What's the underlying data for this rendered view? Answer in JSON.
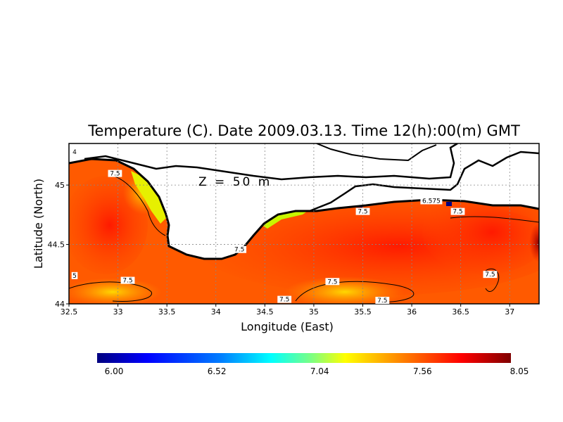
{
  "chart_data": {
    "type": "heatmap",
    "title": "Temperature (C). Date 2009.03.13. Time 12(h):00(m) GMT",
    "annotation": "Z = 50 m",
    "xlabel": "Longitude (East)",
    "ylabel": "Latitude (North)",
    "xlim": [
      32.5,
      37.3
    ],
    "ylim": [
      44.0,
      45.35
    ],
    "x_ticks": [
      "32.5",
      "33",
      "33.5",
      "34",
      "34.5",
      "35",
      "35.5",
      "36",
      "36.5",
      "37"
    ],
    "y_ticks": [
      "44",
      "44.5",
      "45"
    ],
    "grid": true,
    "colorbar": {
      "min": 6.0,
      "max": 8.05,
      "labels": [
        "6.00",
        "6.52",
        "7.04",
        "7.56",
        "8.05"
      ],
      "colors": [
        "#00007f",
        "#0000ff",
        "#007fff",
        "#00ffff",
        "#7fff7f",
        "#ffff00",
        "#ff7f00",
        "#ff0000",
        "#7f0000"
      ]
    },
    "contour_labels": [
      {
        "text": "4",
        "lon": 32.52,
        "lat": 45.26
      },
      {
        "text": "7.5",
        "lon": 32.97,
        "lat": 45.08
      },
      {
        "text": "5",
        "lon": 32.52,
        "lat": 44.22
      },
      {
        "text": "7.5",
        "lon": 33.1,
        "lat": 44.18
      },
      {
        "text": "7.5",
        "lon": 34.24,
        "lat": 44.44
      },
      {
        "text": "7.5",
        "lon": 35.19,
        "lat": 44.17
      },
      {
        "text": "7.5",
        "lon": 34.7,
        "lat": 44.02
      },
      {
        "text": "7.5",
        "lon": 35.5,
        "lat": 44.76
      },
      {
        "text": "6.575",
        "lon": 36.2,
        "lat": 44.85
      },
      {
        "text": "7.5",
        "lon": 36.47,
        "lat": 44.76
      },
      {
        "text": "7.5",
        "lon": 36.8,
        "lat": 44.23
      },
      {
        "text": "7.5",
        "lon": 35.7,
        "lat": 44.0
      }
    ]
  }
}
